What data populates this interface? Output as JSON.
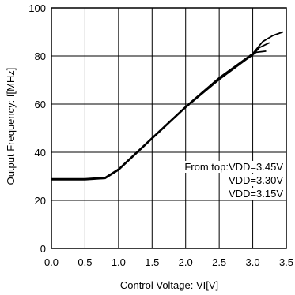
{
  "chart_data": {
    "type": "line",
    "title": "",
    "xlabel": "Control Voltage: VI[V]",
    "ylabel": "Output Frequency: f[MHz]",
    "xlim": [
      0.0,
      3.5
    ],
    "ylim": [
      0,
      100
    ],
    "x_ticks": [
      0.0,
      0.5,
      1.0,
      1.5,
      2.0,
      2.5,
      3.0,
      3.5
    ],
    "x_tick_labels": [
      "0.0",
      "0.5",
      "1.0",
      "1.5",
      "2.0",
      "2.5",
      "3.0",
      "3.5"
    ],
    "y_ticks": [
      0,
      20,
      40,
      60,
      80,
      100
    ],
    "y_tick_labels": [
      "0",
      "20",
      "40",
      "60",
      "80",
      "100"
    ],
    "grid": true,
    "line_color": "#000000",
    "annotation": [
      "From top:VDD=3.45V",
      "VDD=3.30V",
      "VDD=3.15V"
    ],
    "series": [
      {
        "x": [
          0.0,
          0.5,
          0.8,
          1.0,
          1.5,
          2.0,
          2.5,
          3.0,
          3.15,
          3.3,
          3.45
        ],
        "y": [
          29,
          29,
          29.5,
          33,
          46,
          59,
          71,
          81,
          86,
          88.5,
          90
        ]
      },
      {
        "x": [
          0.0,
          0.5,
          0.8,
          1.0,
          1.5,
          2.0,
          2.5,
          3.0,
          3.1,
          3.25
        ],
        "y": [
          28.8,
          28.8,
          29.3,
          32.8,
          45.8,
          58.8,
          70.6,
          80.5,
          83.5,
          85.5
        ]
      },
      {
        "x": [
          0.0,
          0.5,
          0.8,
          1.0,
          1.5,
          2.0,
          2.5,
          2.9,
          3.05,
          3.2
        ],
        "y": [
          28.6,
          28.6,
          29.1,
          32.6,
          45.6,
          58.6,
          70.2,
          78.5,
          81.5,
          82
        ]
      }
    ]
  }
}
